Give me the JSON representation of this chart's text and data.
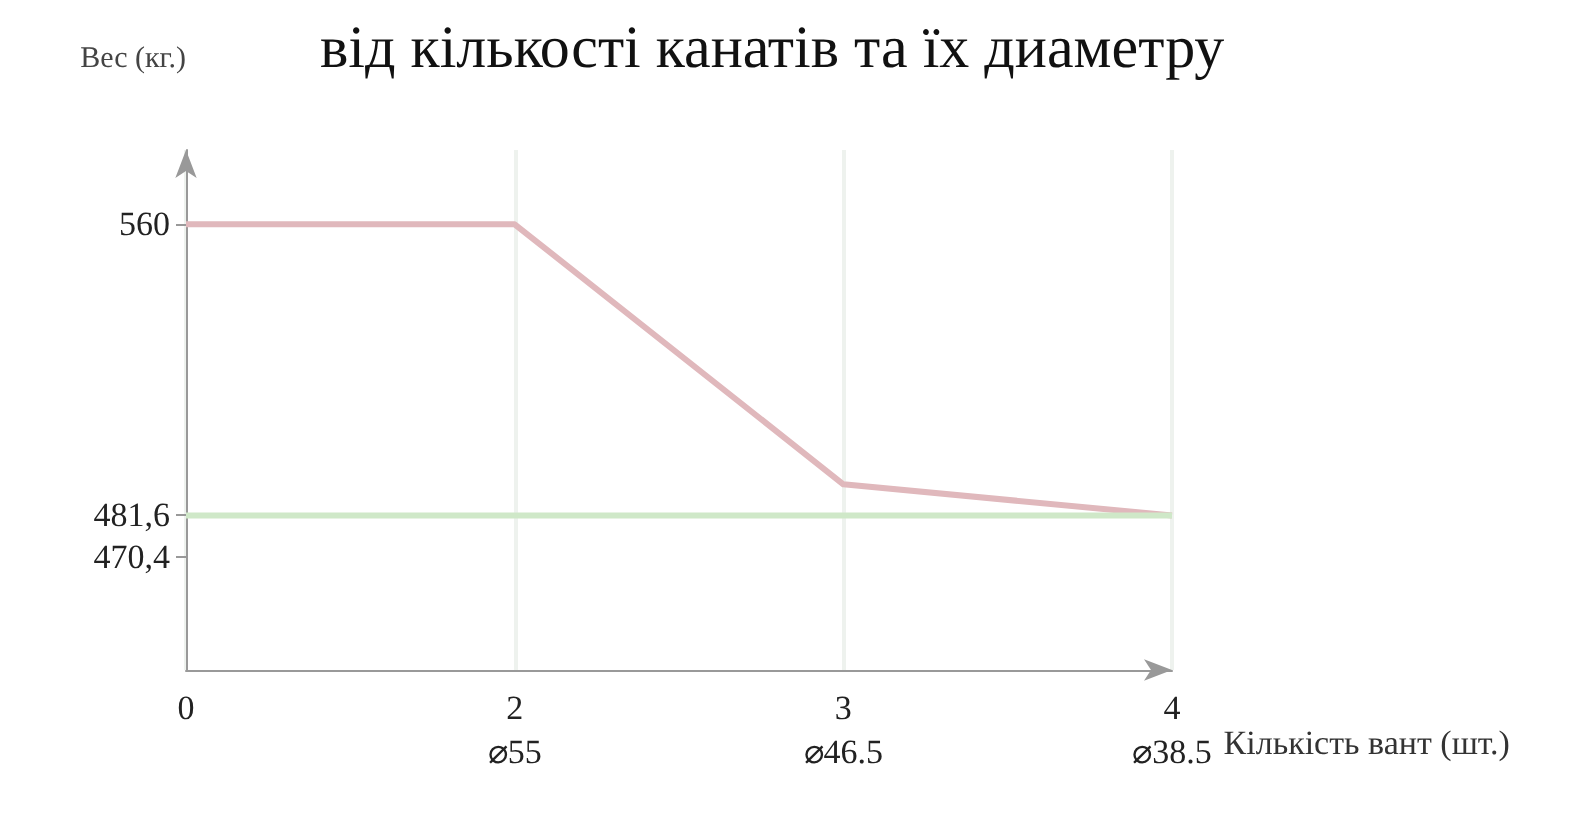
{
  "chart_data": {
    "type": "line",
    "title": "від кількості канатів та їх диаметру",
    "ylabel": "Вес (кг.)",
    "xlabel": "Кількість вант (шт.)",
    "categories": [
      "0",
      "2\n⌀55",
      "3\n⌀46.5",
      "4\n⌀38.5"
    ],
    "series": [
      {
        "color": "#e0b8bc",
        "values": [
          560,
          560,
          490,
          481.6
        ]
      },
      {
        "color": "#cfe8c8",
        "values": [
          481.6,
          481.6,
          481.6,
          481.6
        ]
      }
    ],
    "ylim": [
      440,
      580
    ],
    "yticks": [
      {
        "value": 470.4,
        "label": "470,4"
      },
      {
        "value": 481.6,
        "label": "481,6"
      },
      560
    ],
    "grid": "x",
    "marker": "none",
    "line_style": "solid"
  }
}
